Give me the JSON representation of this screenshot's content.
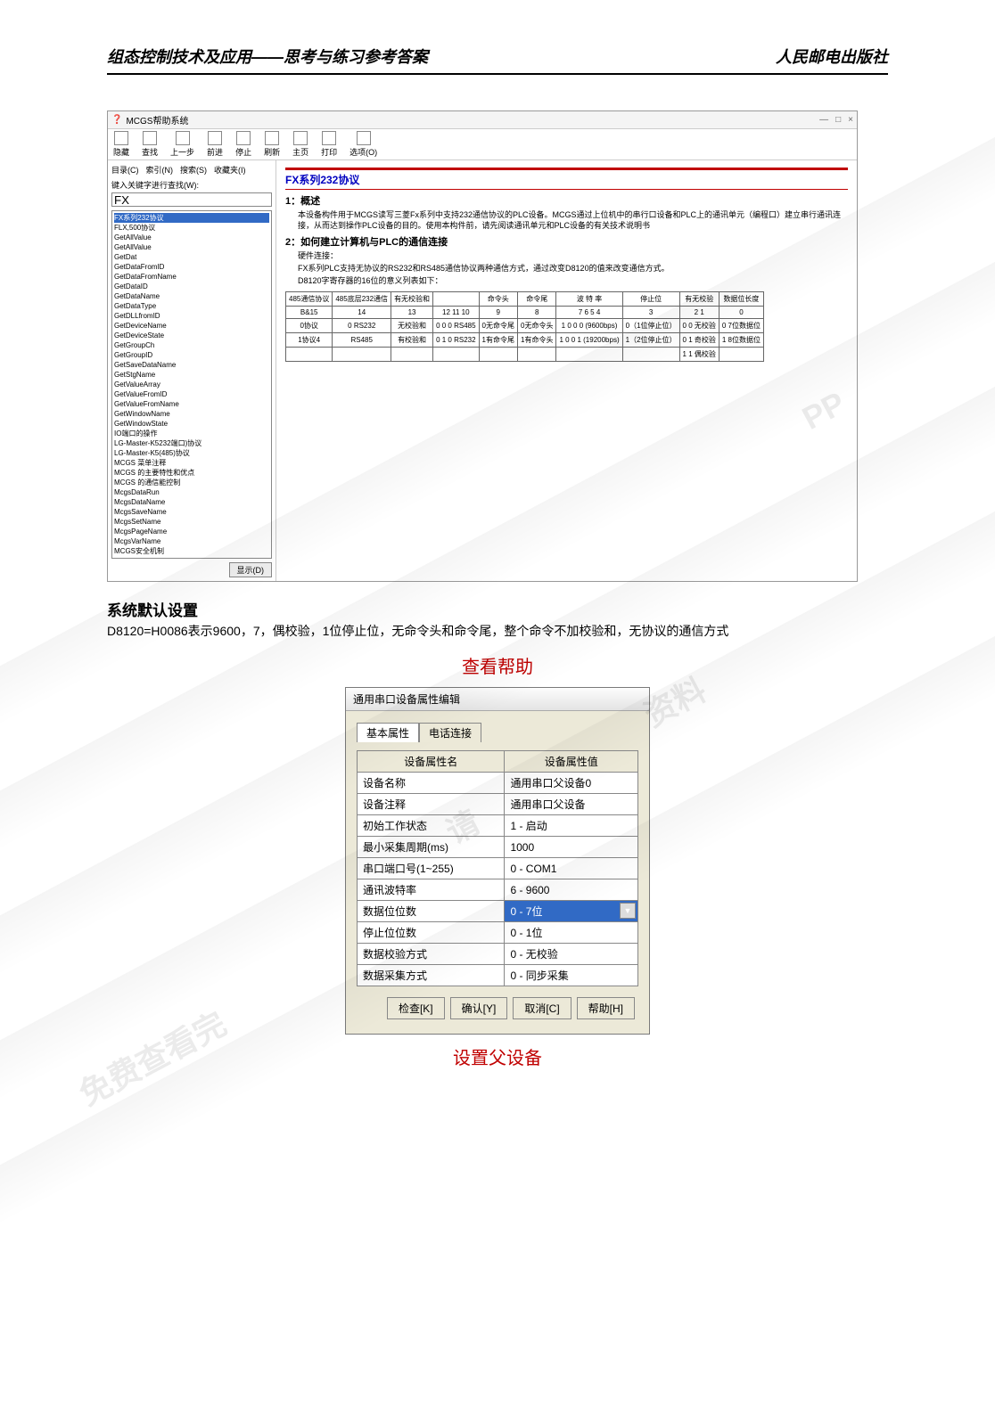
{
  "header": {
    "left": "组态控制技术及应用——思考与练习参考答案",
    "right": "人民邮电出版社"
  },
  "helpWindow": {
    "title": "MCGS帮助系统",
    "winControls": {
      "min": "—",
      "max": "□",
      "close": "×"
    },
    "toolbar": [
      {
        "icon": "hide-icon",
        "label": "隐藏"
      },
      {
        "icon": "search-icon",
        "label": "查找"
      },
      {
        "icon": "back-icon",
        "label": "上一步"
      },
      {
        "icon": "forward-icon",
        "label": "前进"
      },
      {
        "icon": "stop-icon",
        "label": "停止"
      },
      {
        "icon": "refresh-icon",
        "label": "刷新"
      },
      {
        "icon": "home-icon",
        "label": "主页"
      },
      {
        "icon": "print-icon",
        "label": "打印"
      },
      {
        "icon": "options-icon",
        "label": "选项(O)"
      }
    ],
    "leftPanel": {
      "tabs": [
        "目录(C)",
        "索引(N)",
        "搜索(S)",
        "收藏夹(I)"
      ],
      "prompt": "键入关键字进行查找(W):",
      "inputValue": "FX",
      "items": [
        "FX系列232协议",
        "FLX,500协议",
        "GetAllValue",
        "GetAllValue",
        "GetDat",
        "GetDataFromID",
        "GetDataFromName",
        "GetDataID",
        "GetDataName",
        "GetDataType",
        "GetDLLfromID",
        "GetDeviceName",
        "GetDeviceState",
        "GetGroupCh",
        "GetGroupID",
        "GetSaveDataName",
        "GetStgName",
        "GetValueArray",
        "GetValueFromID",
        "GetValueFromName",
        "GetWindowName",
        "GetWindowState",
        "IO端口的操作",
        "LG-Master-K5232端口)协议",
        "LG-Master-K5(485)协议",
        "MCGS 菜单注释",
        "MCGS 的主要特性和优点",
        "MCGS 的通信能控制",
        "McgsDataRun",
        "McgsDataName",
        "McgsSaveName",
        "McgsSetName",
        "McgsPageName",
        "McgsVarName",
        "MCGS安全机制"
      ],
      "hlIndex": 0,
      "showBtn": "显示(D)"
    },
    "rightPanel": {
      "h1": "FX系列232协议",
      "sec1Title": "1：概述",
      "sec1Body": "本设备构件用于MCGS读写三菱Fx系列中支持232通信协议的PLC设备。MCGS通过上位机中的串行口设备和PLC上的通讯单元（编程口）建立串行通讯连接，从而达到操作PLC设备的目的。使用本构件前，请先阅读通讯单元和PLC设备的有关技术说明书",
      "sec2Title": "2：如何建立计算机与PLC的通信连接",
      "sec2a": "硬件连接：",
      "sec2b": "FX系列PLC支持无协议的RS232和RS485通信协议两种通信方式，通过改变D8120的值来改变通信方式。",
      "sec2c": "D8120字寄存器的16位的意义列表如下：",
      "table": {
        "head": [
          "485通信协议",
          "485底层232通信",
          "有无校验和",
          "",
          "命令头",
          "命令尾",
          "波   特   率",
          "停止位",
          "有无校验",
          "数据位长度"
        ],
        "row1": [
          "B&15",
          "14",
          "13",
          "12 11 10",
          "9",
          "8",
          "7  6  5  4",
          "3",
          "2 1",
          "0"
        ],
        "row2": [
          "0协议",
          "0 RS232",
          "无校验和",
          "0 0   0   RS485",
          "0无命令尾",
          "0无命令头",
          "1   0   0   0 (9600bps)",
          "0（1位停止位）",
          "0 0 无校验",
          "0 7位数据位"
        ],
        "row3": [
          "1协议4",
          "RS485",
          "有校验和",
          "0   1   0   RS232",
          "1有命令尾",
          "1有命令头",
          "1   0   0   1 (19200bps)",
          "1（2位停止位）",
          "0 1 奇校验",
          "1 8位数据位"
        ],
        "row4": [
          "",
          "",
          "",
          "",
          "",
          "",
          "",
          "",
          "1 1 偶校验",
          ""
        ]
      }
    }
  },
  "notes": {
    "l1": "系统默认设置",
    "l2": "D8120=H0086表示9600，7，偶校验，1位停止位，无命令头和命令尾，整个命令不加校验和，无协议的通信方式"
  },
  "redLabel1": "查看帮助",
  "dialog": {
    "title": "通用串口设备属性编辑",
    "tabs": [
      "基本属性",
      "电话连接"
    ],
    "activeTab": 0,
    "th1": "设备属性名",
    "th2": "设备属性值",
    "rows": [
      {
        "name": "设备名称",
        "value": "通用串口父设备0"
      },
      {
        "name": "设备注释",
        "value": "通用串口父设备"
      },
      {
        "name": "初始工作状态",
        "value": "1 - 启动"
      },
      {
        "name": "最小采集周期(ms)",
        "value": "1000"
      },
      {
        "name": "串口端口号(1~255)",
        "value": "0 - COM1"
      },
      {
        "name": "通讯波特率",
        "value": "6 - 9600"
      },
      {
        "name": "数据位位数",
        "value": "0 - 7位",
        "selected": true
      },
      {
        "name": "停止位位数",
        "value": "0 - 1位"
      },
      {
        "name": "数据校验方式",
        "value": "0 - 无校验"
      },
      {
        "name": "数据采集方式",
        "value": "0 - 同步采集"
      }
    ],
    "buttons": [
      "检查[K]",
      "确认[Y]",
      "取消[C]",
      "帮助[H]"
    ]
  },
  "redLabel2": "设置父设备"
}
